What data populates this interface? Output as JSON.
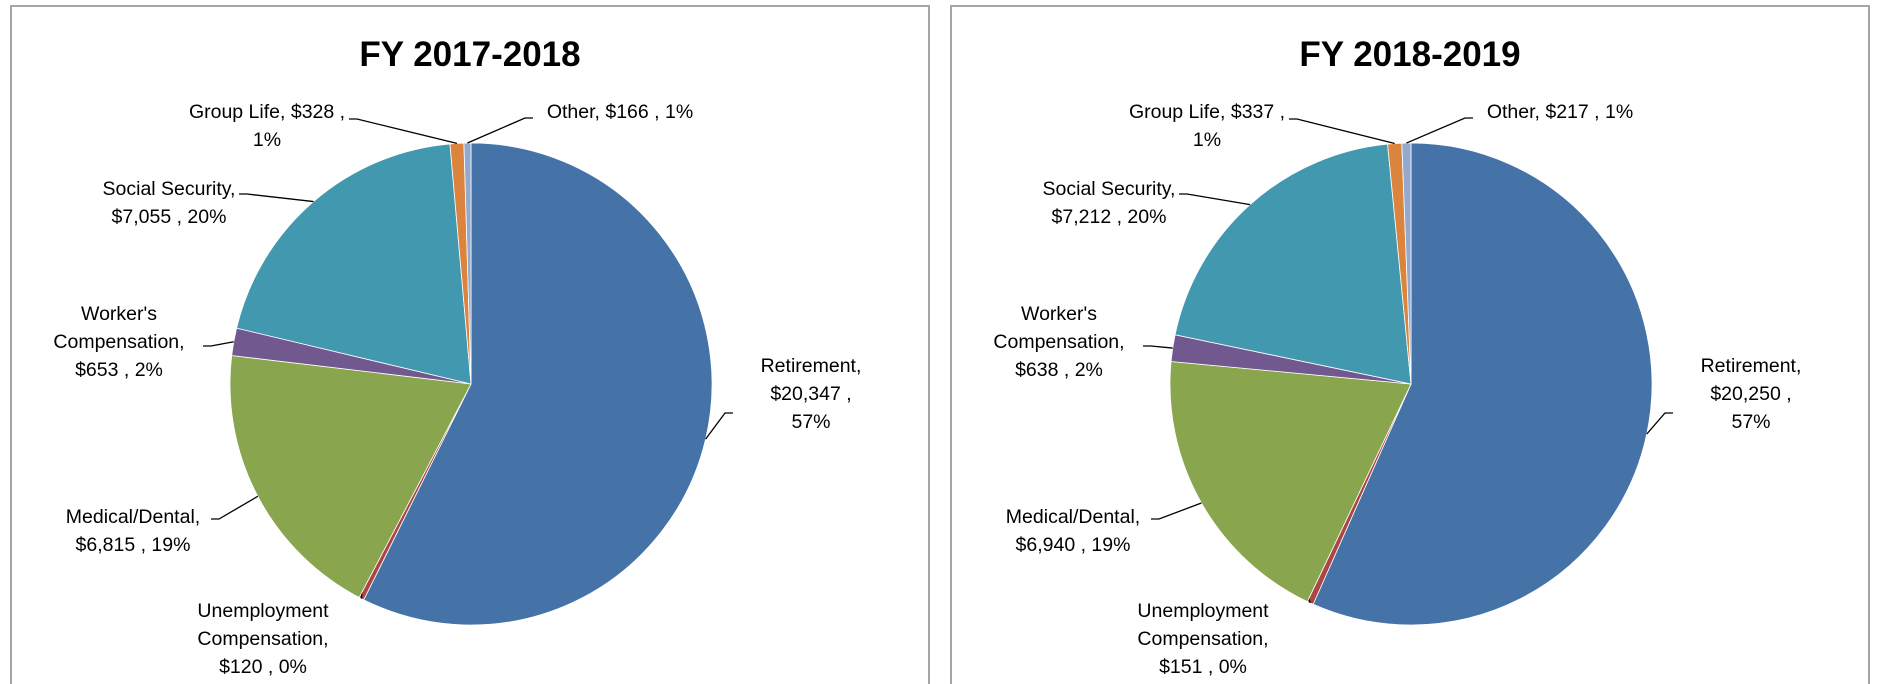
{
  "chart_data": [
    {
      "type": "pie",
      "title": "FY 2017-2018",
      "categories": [
        "Retirement,",
        "Unemployment Compensation,",
        "Medical/Dental,",
        "Worker's Compensation,",
        "Social Security,",
        "Group Life,",
        "Other,"
      ],
      "values": [
        20347,
        120,
        6815,
        653,
        7055,
        328,
        166
      ],
      "value_labels": [
        "$20,347 , 57%",
        "$120 , 0%",
        "$6,815 , 19%",
        "$653 , 2%",
        "$7,055 , 20%",
        "$328 , 1%",
        "$166 , 1%"
      ],
      "colors": [
        "#4572a7",
        "#aa4643",
        "#89a54e",
        "#71588f",
        "#4198af",
        "#db843d",
        "#93a9cf"
      ]
    },
    {
      "type": "pie",
      "title": "FY 2018-2019",
      "categories": [
        "Retirement,",
        "Unemployment Compensation,",
        "Medical/Dental,",
        "Worker's Compensation,",
        "Social Security,",
        "Group Life,",
        "Other,"
      ],
      "values": [
        20250,
        151,
        6940,
        638,
        7212,
        337,
        217
      ],
      "value_labels": [
        "$20,250 , 57%",
        "$151 , 0%",
        "$6,940 , 19%",
        "$638 , 2%",
        "$7,212 , 20%",
        "$337 , 1%",
        "$217 , 1%"
      ],
      "colors": [
        "#4572a7",
        "#aa4643",
        "#89a54e",
        "#71588f",
        "#4198af",
        "#db843d",
        "#93a9cf"
      ]
    }
  ]
}
